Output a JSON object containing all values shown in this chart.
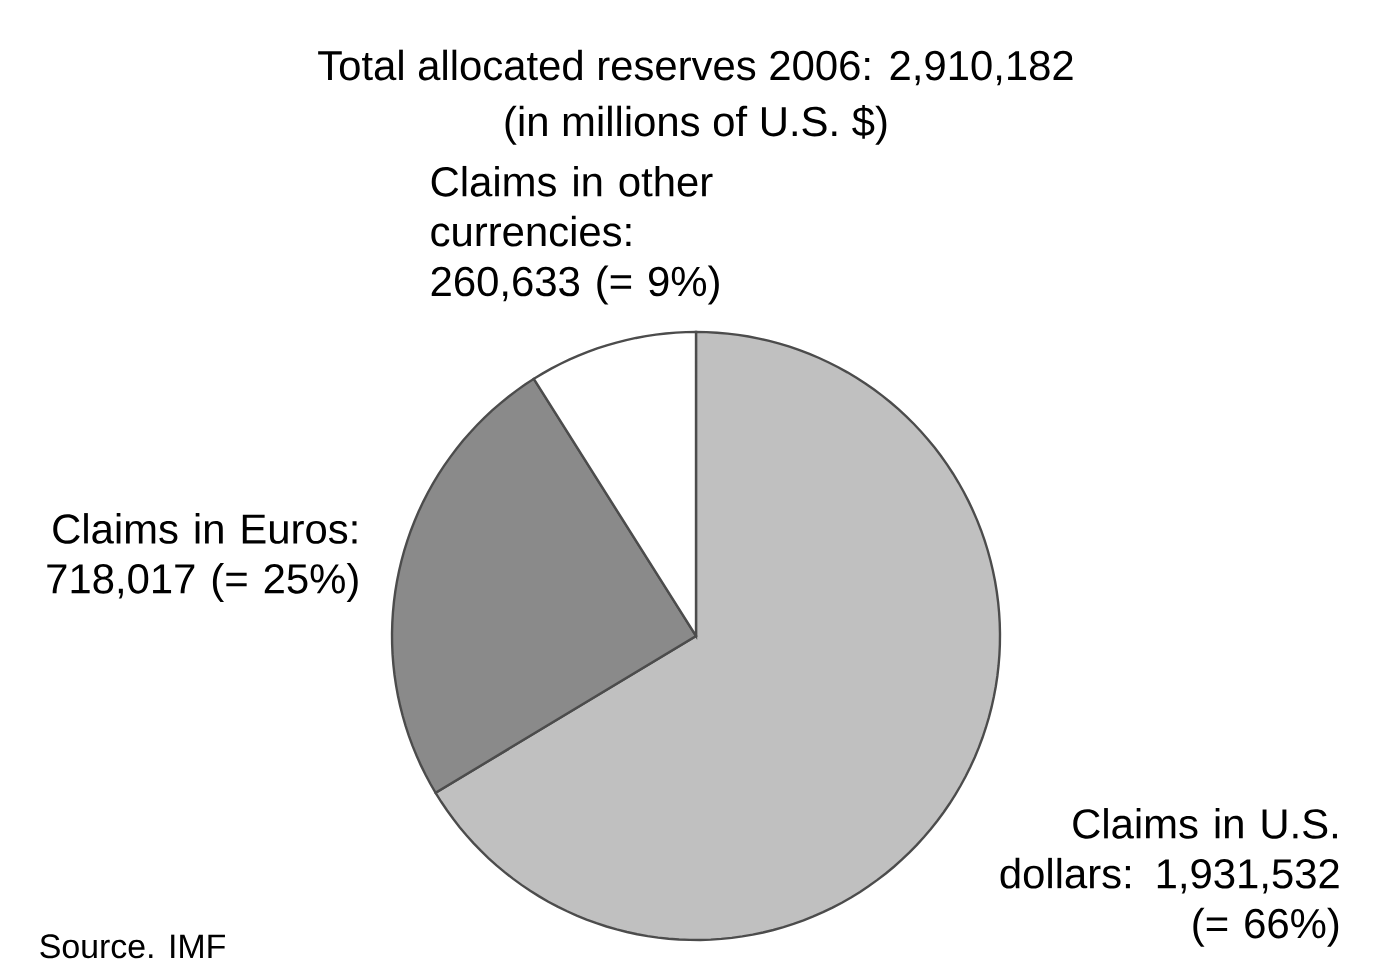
{
  "chart_data": {
    "type": "pie",
    "title": "Total allocated reserves 2006: 2,910,182",
    "subtitle": "(in millions of U.S. $)",
    "categories": [
      "Claims in U.S. dollars: 1,931,532 (= 66%)",
      "Claims in Euros: 718,017 (= 25%)",
      "Claims in other currencies: 260,633 (= 9%)"
    ],
    "values": [
      1931532,
      718017,
      260633
    ],
    "colors": [
      "#c0c0c0",
      "#8a8a8a",
      "#ffffff"
    ],
    "annotations": [
      "Source. IMF"
    ]
  }
}
